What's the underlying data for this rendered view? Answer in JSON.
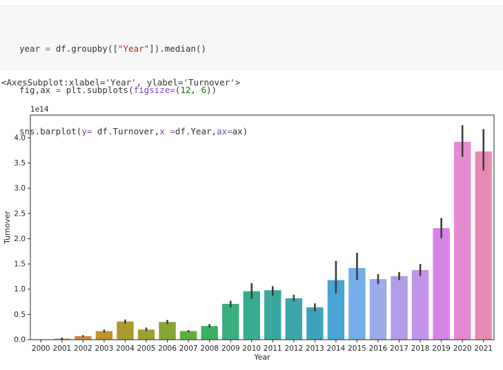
{
  "code_cell": {
    "lines": [
      "year = df.groupby([\"Year\"]).median()",
      "fig,ax = plt.subplots(figsize=(12, 6))",
      "sns.barplot(y= df.Turnover,x =df.Year,ax=ax)"
    ]
  },
  "output": {
    "repr": "<AxesSubplot:xlabel='Year', ylabel='Turnover'>"
  },
  "chart_data": {
    "type": "bar",
    "categories": [
      "2000",
      "2001",
      "2002",
      "2003",
      "2004",
      "2005",
      "2006",
      "2007",
      "2008",
      "2009",
      "2010",
      "2011",
      "2012",
      "2013",
      "2014",
      "2015",
      "2016",
      "2017",
      "2018",
      "2019",
      "2020",
      "2021"
    ],
    "values": [
      0.005,
      0.02,
      0.07,
      0.17,
      0.36,
      0.2,
      0.35,
      0.17,
      0.27,
      0.71,
      0.96,
      0.98,
      0.82,
      0.64,
      1.18,
      1.42,
      1.2,
      1.26,
      1.38,
      2.21,
      3.92,
      3.73
    ],
    "error_low": [
      0.002,
      0.005,
      0.05,
      0.14,
      0.32,
      0.17,
      0.31,
      0.15,
      0.24,
      0.64,
      0.81,
      0.87,
      0.76,
      0.56,
      0.92,
      1.18,
      1.1,
      1.18,
      1.26,
      2.01,
      3.62,
      3.35
    ],
    "error_high": [
      0.008,
      0.04,
      0.09,
      0.2,
      0.4,
      0.24,
      0.39,
      0.19,
      0.31,
      0.77,
      1.12,
      1.06,
      0.89,
      0.72,
      1.56,
      1.72,
      1.3,
      1.34,
      1.5,
      2.41,
      4.25,
      4.17
    ],
    "colors": [
      "#e8868c",
      "#e08b5b",
      "#cd8b3c",
      "#c2922e",
      "#ad9a2e",
      "#9da033",
      "#86a538",
      "#5cae3f",
      "#3bb05e",
      "#3aae7e",
      "#39ab91",
      "#3aa89f",
      "#3ca6ab",
      "#3ea3ba",
      "#48a5d4",
      "#72aee8",
      "#9cabe9",
      "#b39ce8",
      "#c393e9",
      "#d883e9",
      "#e68ad2",
      "#e68ab4"
    ],
    "xlabel": "Year",
    "ylabel": "Turnover",
    "offset_text": "1e14",
    "ylim": [
      0,
      4.45
    ],
    "yticks": [
      "0.0",
      "0.5",
      "1.0",
      "1.5",
      "2.0",
      "2.5",
      "3.0",
      "3.5",
      "4.0"
    ],
    "grid": false,
    "errorbars": true
  }
}
